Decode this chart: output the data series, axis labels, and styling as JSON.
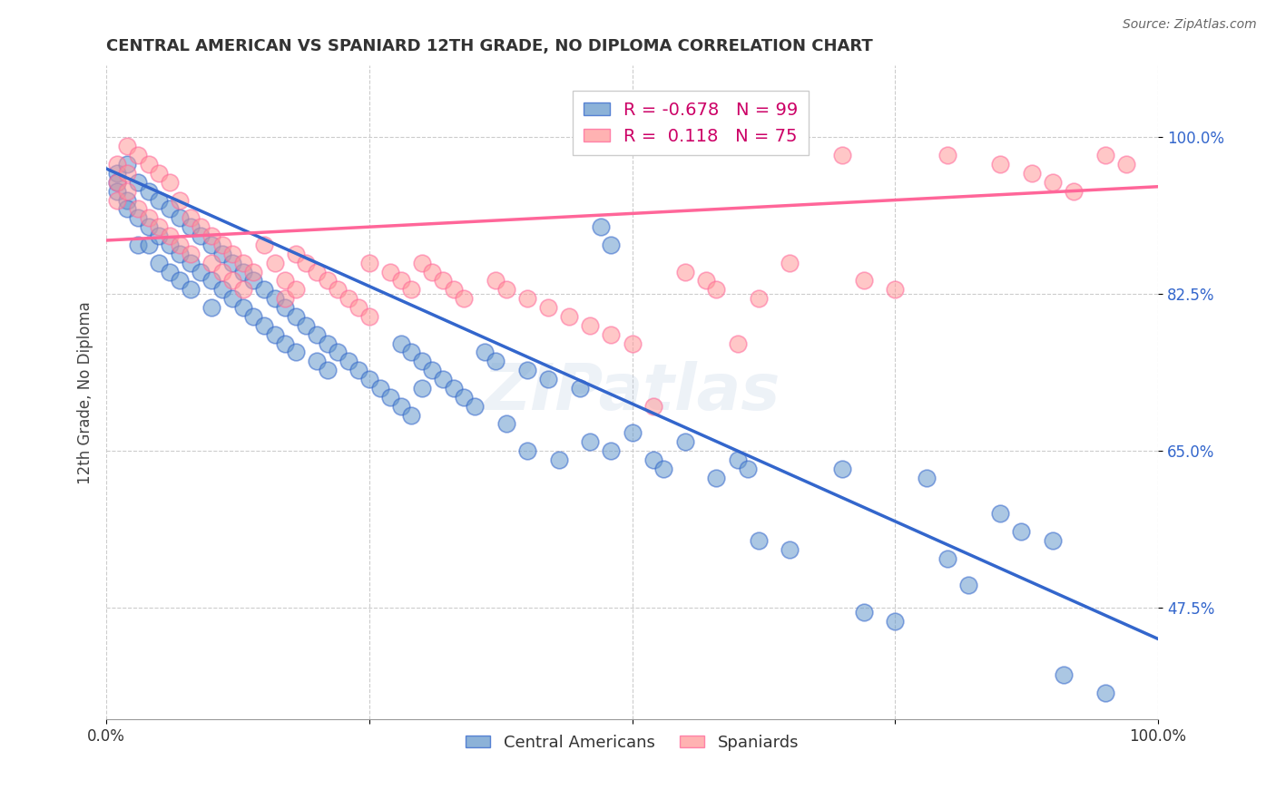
{
  "title": "CENTRAL AMERICAN VS SPANIARD 12TH GRADE, NO DIPLOMA CORRELATION CHART",
  "source": "Source: ZipAtlas.com",
  "ylabel": "12th Grade, No Diploma",
  "ytick_labels": [
    "47.5%",
    "65.0%",
    "82.5%",
    "100.0%"
  ],
  "ytick_values": [
    0.475,
    0.65,
    0.825,
    1.0
  ],
  "xmin": 0.0,
  "xmax": 1.0,
  "ymin": 0.35,
  "ymax": 1.08,
  "legend_blue_r": "-0.678",
  "legend_blue_n": "99",
  "legend_pink_r": " 0.118",
  "legend_pink_n": "75",
  "blue_color": "#6699CC",
  "pink_color": "#FF9999",
  "blue_line_color": "#3366CC",
  "pink_line_color": "#FF6699",
  "blue_scatter": [
    [
      0.01,
      0.96
    ],
    [
      0.01,
      0.95
    ],
    [
      0.01,
      0.94
    ],
    [
      0.02,
      0.97
    ],
    [
      0.02,
      0.93
    ],
    [
      0.02,
      0.92
    ],
    [
      0.03,
      0.95
    ],
    [
      0.03,
      0.91
    ],
    [
      0.03,
      0.88
    ],
    [
      0.04,
      0.94
    ],
    [
      0.04,
      0.9
    ],
    [
      0.04,
      0.88
    ],
    [
      0.05,
      0.93
    ],
    [
      0.05,
      0.89
    ],
    [
      0.05,
      0.86
    ],
    [
      0.06,
      0.92
    ],
    [
      0.06,
      0.88
    ],
    [
      0.06,
      0.85
    ],
    [
      0.07,
      0.91
    ],
    [
      0.07,
      0.87
    ],
    [
      0.07,
      0.84
    ],
    [
      0.08,
      0.9
    ],
    [
      0.08,
      0.86
    ],
    [
      0.08,
      0.83
    ],
    [
      0.09,
      0.89
    ],
    [
      0.09,
      0.85
    ],
    [
      0.1,
      0.88
    ],
    [
      0.1,
      0.84
    ],
    [
      0.1,
      0.81
    ],
    [
      0.11,
      0.87
    ],
    [
      0.11,
      0.83
    ],
    [
      0.12,
      0.86
    ],
    [
      0.12,
      0.82
    ],
    [
      0.13,
      0.85
    ],
    [
      0.13,
      0.81
    ],
    [
      0.14,
      0.84
    ],
    [
      0.14,
      0.8
    ],
    [
      0.15,
      0.83
    ],
    [
      0.15,
      0.79
    ],
    [
      0.16,
      0.82
    ],
    [
      0.16,
      0.78
    ],
    [
      0.17,
      0.81
    ],
    [
      0.17,
      0.77
    ],
    [
      0.18,
      0.8
    ],
    [
      0.18,
      0.76
    ],
    [
      0.19,
      0.79
    ],
    [
      0.2,
      0.78
    ],
    [
      0.2,
      0.75
    ],
    [
      0.21,
      0.77
    ],
    [
      0.21,
      0.74
    ],
    [
      0.22,
      0.76
    ],
    [
      0.23,
      0.75
    ],
    [
      0.24,
      0.74
    ],
    [
      0.25,
      0.73
    ],
    [
      0.26,
      0.72
    ],
    [
      0.27,
      0.71
    ],
    [
      0.28,
      0.77
    ],
    [
      0.28,
      0.7
    ],
    [
      0.29,
      0.76
    ],
    [
      0.29,
      0.69
    ],
    [
      0.3,
      0.75
    ],
    [
      0.3,
      0.72
    ],
    [
      0.31,
      0.74
    ],
    [
      0.32,
      0.73
    ],
    [
      0.33,
      0.72
    ],
    [
      0.34,
      0.71
    ],
    [
      0.35,
      0.7
    ],
    [
      0.36,
      0.76
    ],
    [
      0.37,
      0.75
    ],
    [
      0.38,
      0.68
    ],
    [
      0.4,
      0.74
    ],
    [
      0.4,
      0.65
    ],
    [
      0.42,
      0.73
    ],
    [
      0.43,
      0.64
    ],
    [
      0.45,
      0.72
    ],
    [
      0.46,
      0.66
    ],
    [
      0.47,
      0.9
    ],
    [
      0.48,
      0.88
    ],
    [
      0.48,
      0.65
    ],
    [
      0.5,
      0.67
    ],
    [
      0.52,
      0.64
    ],
    [
      0.53,
      0.63
    ],
    [
      0.55,
      0.66
    ],
    [
      0.58,
      0.62
    ],
    [
      0.6,
      0.64
    ],
    [
      0.61,
      0.63
    ],
    [
      0.62,
      0.55
    ],
    [
      0.65,
      0.54
    ],
    [
      0.7,
      0.63
    ],
    [
      0.72,
      0.47
    ],
    [
      0.75,
      0.46
    ],
    [
      0.78,
      0.62
    ],
    [
      0.8,
      0.53
    ],
    [
      0.82,
      0.5
    ],
    [
      0.85,
      0.58
    ],
    [
      0.87,
      0.56
    ],
    [
      0.9,
      0.55
    ],
    [
      0.91,
      0.4
    ],
    [
      0.95,
      0.38
    ]
  ],
  "pink_scatter": [
    [
      0.01,
      0.97
    ],
    [
      0.01,
      0.95
    ],
    [
      0.01,
      0.93
    ],
    [
      0.02,
      0.99
    ],
    [
      0.02,
      0.96
    ],
    [
      0.02,
      0.94
    ],
    [
      0.03,
      0.98
    ],
    [
      0.03,
      0.92
    ],
    [
      0.04,
      0.97
    ],
    [
      0.04,
      0.91
    ],
    [
      0.05,
      0.96
    ],
    [
      0.05,
      0.9
    ],
    [
      0.06,
      0.95
    ],
    [
      0.06,
      0.89
    ],
    [
      0.07,
      0.93
    ],
    [
      0.07,
      0.88
    ],
    [
      0.08,
      0.91
    ],
    [
      0.08,
      0.87
    ],
    [
      0.09,
      0.9
    ],
    [
      0.1,
      0.89
    ],
    [
      0.1,
      0.86
    ],
    [
      0.11,
      0.88
    ],
    [
      0.11,
      0.85
    ],
    [
      0.12,
      0.87
    ],
    [
      0.12,
      0.84
    ],
    [
      0.13,
      0.86
    ],
    [
      0.13,
      0.83
    ],
    [
      0.14,
      0.85
    ],
    [
      0.15,
      0.88
    ],
    [
      0.16,
      0.86
    ],
    [
      0.17,
      0.84
    ],
    [
      0.17,
      0.82
    ],
    [
      0.18,
      0.87
    ],
    [
      0.18,
      0.83
    ],
    [
      0.19,
      0.86
    ],
    [
      0.2,
      0.85
    ],
    [
      0.21,
      0.84
    ],
    [
      0.22,
      0.83
    ],
    [
      0.23,
      0.82
    ],
    [
      0.24,
      0.81
    ],
    [
      0.25,
      0.86
    ],
    [
      0.25,
      0.8
    ],
    [
      0.27,
      0.85
    ],
    [
      0.28,
      0.84
    ],
    [
      0.29,
      0.83
    ],
    [
      0.3,
      0.86
    ],
    [
      0.31,
      0.85
    ],
    [
      0.32,
      0.84
    ],
    [
      0.33,
      0.83
    ],
    [
      0.34,
      0.82
    ],
    [
      0.37,
      0.84
    ],
    [
      0.38,
      0.83
    ],
    [
      0.4,
      0.82
    ],
    [
      0.42,
      0.81
    ],
    [
      0.44,
      0.8
    ],
    [
      0.46,
      0.79
    ],
    [
      0.48,
      0.78
    ],
    [
      0.5,
      0.77
    ],
    [
      0.52,
      0.7
    ],
    [
      0.55,
      0.85
    ],
    [
      0.57,
      0.84
    ],
    [
      0.58,
      0.83
    ],
    [
      0.6,
      0.77
    ],
    [
      0.62,
      0.82
    ],
    [
      0.65,
      0.86
    ],
    [
      0.7,
      0.98
    ],
    [
      0.72,
      0.84
    ],
    [
      0.75,
      0.83
    ],
    [
      0.8,
      0.98
    ],
    [
      0.85,
      0.97
    ],
    [
      0.88,
      0.96
    ],
    [
      0.9,
      0.95
    ],
    [
      0.92,
      0.94
    ],
    [
      0.95,
      0.98
    ],
    [
      0.97,
      0.97
    ]
  ],
  "blue_line_y_start": 0.965,
  "blue_line_y_end": 0.44,
  "pink_line_y_start": 0.885,
  "pink_line_y_end": 0.945,
  "watermark": "ZIPatlas",
  "grid_color": "#CCCCCC",
  "background_color": "#FFFFFF",
  "legend_text_color": "#CC0066",
  "title_color": "#333333",
  "ylabel_color": "#444444",
  "ytick_color": "#3366CC",
  "source_color": "#666666"
}
